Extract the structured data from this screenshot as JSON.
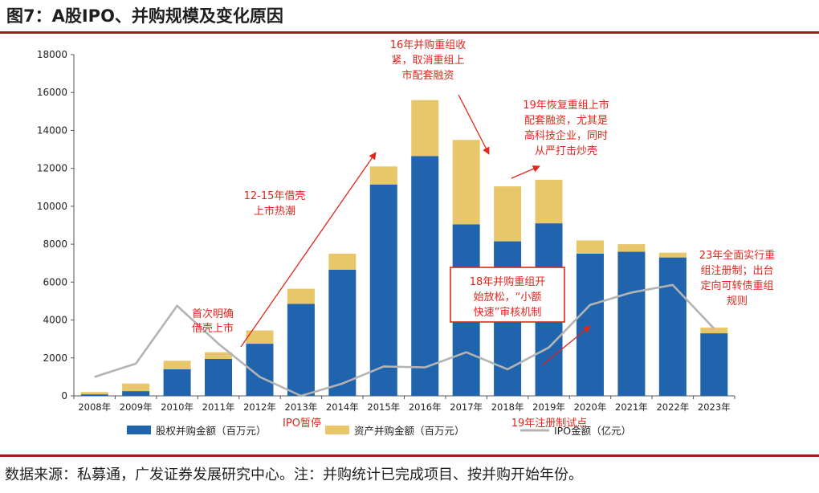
{
  "header": {
    "figure_title": "图7：A股IPO、并购规模及变化原因"
  },
  "footer": {
    "source_note": "数据来源：私募通，广发证券发展研究中心。注：并购统计已完成项目、按并购开始年份。"
  },
  "colors": {
    "equity_bar": "#1f64ad",
    "asset_bar": "#e8c66a",
    "ipo_line": "#b3b3b3",
    "annotation": "#e0261c",
    "rule": "#9a1e1e"
  },
  "chart_data": {
    "type": "bar",
    "stacked": true,
    "title": "",
    "xlabel": "",
    "ylabel": "",
    "ylim": [
      0,
      18000
    ],
    "yticks": [
      0,
      2000,
      4000,
      6000,
      8000,
      10000,
      12000,
      14000,
      16000,
      18000
    ],
    "categories": [
      "2008年",
      "2009年",
      "2010年",
      "2011年",
      "2012年",
      "2013年",
      "2014年",
      "2015年",
      "2016年",
      "2017年",
      "2018年",
      "2019年",
      "2020年",
      "2021年",
      "2022年",
      "2023年"
    ],
    "series": [
      {
        "name": "股权并购金额（百万元）",
        "kind": "bar",
        "values": [
          80,
          250,
          1400,
          1950,
          2750,
          4850,
          6650,
          11150,
          12650,
          9050,
          8150,
          9100,
          7500,
          7600,
          7300,
          3300
        ]
      },
      {
        "name": "资产并购金额（百万元）",
        "kind": "bar",
        "values": [
          120,
          400,
          450,
          350,
          700,
          800,
          850,
          950,
          2950,
          4450,
          2900,
          2300,
          700,
          400,
          250,
          300
        ]
      },
      {
        "name": "IPO金额（亿元）",
        "kind": "line",
        "values": [
          1000,
          1700,
          4750,
          2750,
          1000,
          0,
          650,
          1550,
          1500,
          2300,
          1400,
          2550,
          4800,
          5450,
          5850,
          3550
        ]
      }
    ],
    "legend": {
      "position": "bottom"
    },
    "annotations": [
      {
        "id": "2016-tighten",
        "lines": [
          "16年并购重组收",
          "紧，取消重组上",
          "市配套融资"
        ]
      },
      {
        "id": "2019-restore",
        "lines": [
          "19年恢复重组上市",
          "配套融资，尤其是",
          "高科技企业，同时",
          "从严打击炒壳"
        ]
      },
      {
        "id": "2012-2015-shell",
        "lines": [
          "12-15年借壳",
          "上市热潮"
        ]
      },
      {
        "id": "2011-first",
        "lines": [
          "首次明确",
          "借壳上市"
        ]
      },
      {
        "id": "2018-relax",
        "lines": [
          "18年并购重组开",
          "始放松，“小额",
          "快速”审核机制"
        ]
      },
      {
        "id": "2023-full",
        "lines": [
          "23年全面实行重",
          "组注册制；出台",
          "定向可转债重组",
          "规则"
        ]
      },
      {
        "id": "ipo-pause",
        "lines": [
          "IPO暂停"
        ]
      },
      {
        "id": "2019-pilot",
        "lines": [
          "19年注册制试点"
        ]
      }
    ]
  }
}
